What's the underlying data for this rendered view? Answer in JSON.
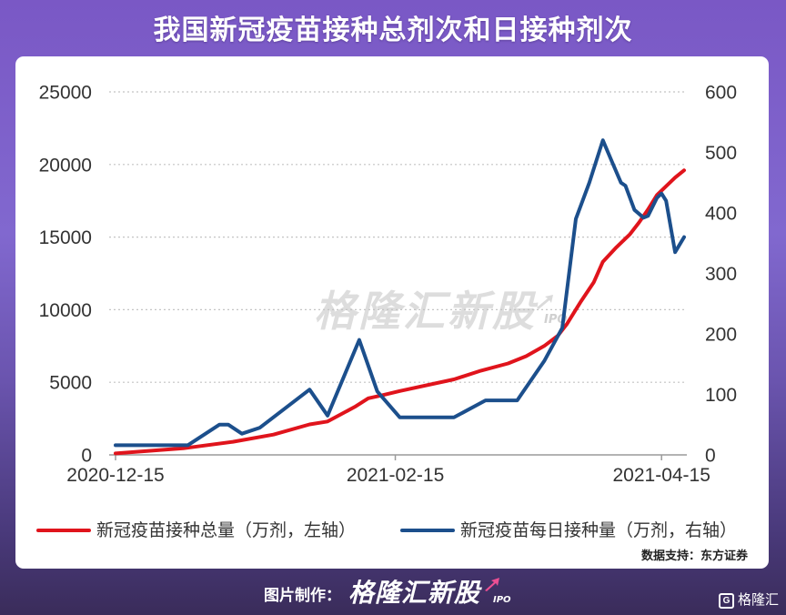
{
  "chart_data": {
    "type": "line",
    "title": "我国新冠疫苗接种总剂次和日接种剂次",
    "xlim": [
      "2020-12-15",
      "2021-04-20"
    ],
    "x_ticks": [
      "2020-12-15",
      "2021-02-15",
      "2021-04-15"
    ],
    "y_left": {
      "ylim": [
        0,
        25000
      ],
      "ticks": [
        0,
        5000,
        10000,
        15000,
        20000,
        25000
      ]
    },
    "y_right": {
      "ylim": [
        0,
        600
      ],
      "ticks": [
        0,
        100,
        200,
        300,
        400,
        500,
        600
      ]
    },
    "grid": true,
    "legend": "bottom",
    "series": [
      {
        "name": "新冠疫苗接种总量（万剂，左轴）",
        "axis": "left",
        "color": "#e0141c",
        "x": [
          "2020-12-15",
          "2020-12-30",
          "2021-01-10",
          "2021-01-19",
          "2021-01-27",
          "2021-01-31",
          "2021-02-03",
          "2021-02-06",
          "2021-02-09",
          "2021-02-12",
          "2021-02-16",
          "2021-02-28",
          "2021-03-06",
          "2021-03-12",
          "2021-03-16",
          "2021-03-20",
          "2021-03-23",
          "2021-03-25",
          "2021-03-28",
          "2021-03-31",
          "2021-04-02",
          "2021-04-05",
          "2021-04-08",
          "2021-04-10",
          "2021-04-12",
          "2021-04-14",
          "2021-04-16",
          "2021-04-18",
          "2021-04-20"
        ],
        "y": [
          100,
          450,
          900,
          1400,
          2100,
          2300,
          2800,
          3300,
          3900,
          4100,
          4400,
          5200,
          5800,
          6300,
          6800,
          7500,
          8200,
          9000,
          10500,
          11900,
          13300,
          14300,
          15200,
          16000,
          16900,
          17900,
          18500,
          19100,
          19600
        ]
      },
      {
        "name": "新冠疫苗每日接种量（万剂，右轴）",
        "axis": "right",
        "color": "#1c4f8c",
        "x": [
          "2020-12-15",
          "2020-12-31",
          "2021-01-07",
          "2021-01-09",
          "2021-01-12",
          "2021-01-16",
          "2021-01-27",
          "2021-01-31",
          "2021-02-07",
          "2021-02-11",
          "2021-02-16",
          "2021-02-28",
          "2021-03-07",
          "2021-03-14",
          "2021-03-20",
          "2021-03-24",
          "2021-03-27",
          "2021-03-30",
          "2021-04-02",
          "2021-04-04",
          "2021-04-06",
          "2021-04-07",
          "2021-04-09",
          "2021-04-11",
          "2021-04-12",
          "2021-04-14",
          "2021-04-15",
          "2021-04-16",
          "2021-04-18",
          "2021-04-20"
        ],
        "y": [
          16,
          16,
          50,
          50,
          35,
          45,
          108,
          65,
          190,
          105,
          62,
          62,
          90,
          90,
          155,
          210,
          390,
          450,
          520,
          485,
          450,
          445,
          405,
          392,
          395,
          425,
          432,
          420,
          335,
          360
        ]
      }
    ]
  },
  "source": "数据支持：东方证券",
  "watermark": {
    "text": "格隆汇新股",
    "tag": "IPO"
  },
  "footer": {
    "credit_label": "图片制作：",
    "logo_text": "格隆汇新股",
    "logo_tag": "IPO",
    "brand_mark": "G",
    "brand_name": "格隆汇"
  }
}
